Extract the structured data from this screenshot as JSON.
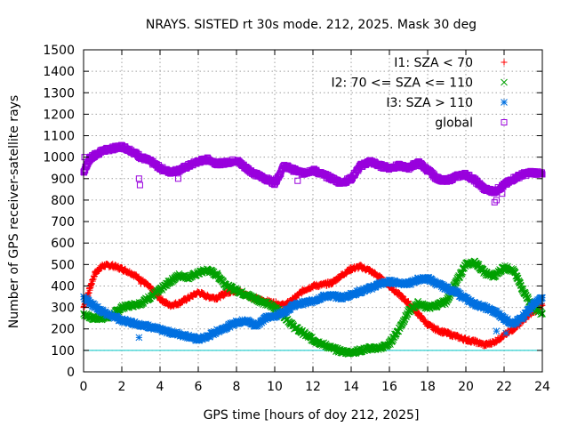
{
  "chart_data": {
    "type": "scatter",
    "title": "NRAYS. SISTED rt 30s mode. 212, 2025. Mask 30 deg",
    "xlabel": "GPS time [hours of doy 212, 2025]",
    "ylabel": "Number of GPS receiver-satellite rays",
    "xlim": [
      0,
      24
    ],
    "ylim": [
      0,
      1500
    ],
    "xticks": [
      0,
      2,
      4,
      6,
      8,
      10,
      12,
      14,
      16,
      18,
      20,
      22,
      24
    ],
    "yticks": [
      0,
      100,
      200,
      300,
      400,
      500,
      600,
      700,
      800,
      900,
      1000,
      1100,
      1200,
      1300,
      1400,
      1500
    ],
    "grid": true,
    "legend_position": "top-right",
    "reference_line": {
      "y": 100,
      "color": "#00c8c8"
    },
    "series": [
      {
        "name": "I1: SZA < 70",
        "marker": "+",
        "color": "#ff0000",
        "x": [
          0,
          0.3,
          0.6,
          1,
          1.5,
          2,
          2.5,
          3,
          3.5,
          4,
          4.5,
          5,
          5.5,
          6,
          6.5,
          7,
          7.5,
          8,
          8.5,
          9,
          9.5,
          10,
          10.5,
          11,
          11.5,
          12,
          12.5,
          13,
          13.5,
          14,
          14.5,
          15,
          15.5,
          16,
          16.5,
          17,
          17.5,
          18,
          18.5,
          19,
          19.5,
          20,
          20.5,
          21,
          21.5,
          22,
          22.5,
          23,
          23.5,
          24
        ],
        "y": [
          300,
          380,
          460,
          495,
          495,
          480,
          460,
          430,
          390,
          340,
          310,
          320,
          345,
          370,
          350,
          345,
          370,
          380,
          360,
          340,
          330,
          320,
          310,
          340,
          380,
          400,
          405,
          415,
          450,
          480,
          490,
          470,
          440,
          400,
          360,
          320,
          270,
          220,
          195,
          180,
          165,
          150,
          140,
          125,
          140,
          170,
          200,
          240,
          280,
          310
        ]
      },
      {
        "name": "I2: 70 <= SZA <= 110",
        "marker": "x",
        "color": "#00a000",
        "x": [
          0,
          0.5,
          1,
          1.5,
          2,
          2.5,
          3,
          3.5,
          4,
          4.5,
          5,
          5.5,
          6,
          6.5,
          7,
          7.5,
          8,
          8.5,
          9,
          9.5,
          10,
          10.5,
          11,
          11.5,
          12,
          12.5,
          13,
          13.5,
          14,
          14.5,
          15,
          15.5,
          16,
          16.5,
          17,
          17.5,
          18,
          18.5,
          19,
          19.5,
          20,
          20.5,
          21,
          21.5,
          22,
          22.5,
          23,
          23.5,
          24
        ],
        "y": [
          270,
          250,
          250,
          265,
          300,
          310,
          320,
          350,
          380,
          420,
          450,
          440,
          460,
          475,
          450,
          400,
          380,
          360,
          340,
          320,
          300,
          260,
          210,
          180,
          150,
          130,
          110,
          95,
          90,
          100,
          110,
          110,
          130,
          200,
          280,
          320,
          300,
          310,
          330,
          420,
          500,
          510,
          460,
          445,
          490,
          470,
          380,
          300,
          270
        ]
      },
      {
        "name": "I3: SZA > 110",
        "marker": "*",
        "color": "#0070e0",
        "x": [
          0,
          0.5,
          1,
          1.5,
          2,
          2.5,
          3,
          3.5,
          4,
          4.5,
          5,
          5.5,
          6,
          6.5,
          7,
          7.5,
          8,
          8.5,
          9,
          9.5,
          10,
          10.5,
          11,
          11.5,
          12,
          12.5,
          13,
          13.5,
          14,
          14.5,
          15,
          15.5,
          16,
          16.5,
          17,
          17.5,
          18,
          18.5,
          19,
          19.5,
          20,
          20.5,
          21,
          21.5,
          22,
          22.5,
          23,
          23.5,
          24
        ],
        "y": [
          350,
          310,
          280,
          260,
          240,
          230,
          220,
          210,
          195,
          185,
          175,
          165,
          150,
          165,
          190,
          210,
          230,
          240,
          215,
          250,
          260,
          280,
          310,
          320,
          330,
          350,
          355,
          345,
          360,
          375,
          390,
          410,
          420,
          415,
          410,
          430,
          435,
          410,
          390,
          370,
          340,
          315,
          300,
          280,
          250,
          220,
          260,
          310,
          345
        ]
      },
      {
        "name": "global",
        "marker": "square",
        "color": "#9900dd",
        "x": [
          0,
          0.3,
          0.6,
          1,
          1.5,
          2,
          2.5,
          3,
          3.5,
          4,
          4.5,
          5,
          5.5,
          6,
          6.5,
          7,
          7.5,
          8,
          8.5,
          9,
          9.5,
          10,
          10.5,
          11,
          11.5,
          12,
          12.5,
          13,
          13.5,
          14,
          14.5,
          15,
          15.5,
          16,
          16.5,
          17,
          17.5,
          18,
          18.5,
          19,
          19.5,
          20,
          20.5,
          21,
          21.5,
          22,
          22.5,
          23,
          23.5,
          24
        ],
        "y": [
          930,
          990,
          1010,
          1030,
          1040,
          1050,
          1030,
          1000,
          980,
          950,
          930,
          940,
          960,
          980,
          990,
          970,
          975,
          985,
          950,
          920,
          900,
          880,
          960,
          940,
          925,
          940,
          920,
          900,
          880,
          900,
          960,
          980,
          960,
          950,
          960,
          950,
          975,
          940,
          900,
          890,
          910,
          920,
          890,
          850,
          840,
          870,
          900,
          920,
          930,
          920
        ]
      }
    ],
    "extra_points": [
      {
        "series": "global",
        "x": [
          0.05,
          2.9,
          2.95,
          4.95,
          11.2,
          21.5,
          21.6,
          21.9
        ],
        "y": [
          1000,
          900,
          870,
          900,
          890,
          790,
          800,
          830
        ]
      },
      {
        "series": "I3: SZA > 110",
        "x": [
          2.9,
          21.6,
          22.1
        ],
        "y": [
          160,
          190,
          180
        ]
      },
      {
        "series": "I1: SZA < 70",
        "x": [
          3.0
        ],
        "y": [
          410
        ]
      }
    ]
  }
}
